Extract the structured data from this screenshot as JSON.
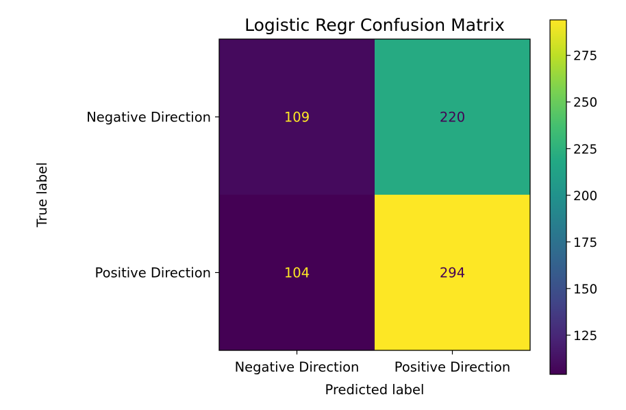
{
  "chart_data": {
    "type": "heatmap",
    "title": "Logistic Regr Confusion Matrix",
    "xlabel": "Predicted label",
    "ylabel": "True label",
    "x_categories": [
      "Negative Direction",
      "Positive Direction"
    ],
    "y_categories": [
      "Negative Direction",
      "Positive Direction"
    ],
    "matrix": [
      [
        109,
        220
      ],
      [
        104,
        294
      ]
    ],
    "colormap": "viridis",
    "colorbar": {
      "min": 104,
      "max": 294,
      "ticks": [
        125,
        150,
        175,
        200,
        225,
        250,
        275
      ]
    },
    "grid": false
  }
}
